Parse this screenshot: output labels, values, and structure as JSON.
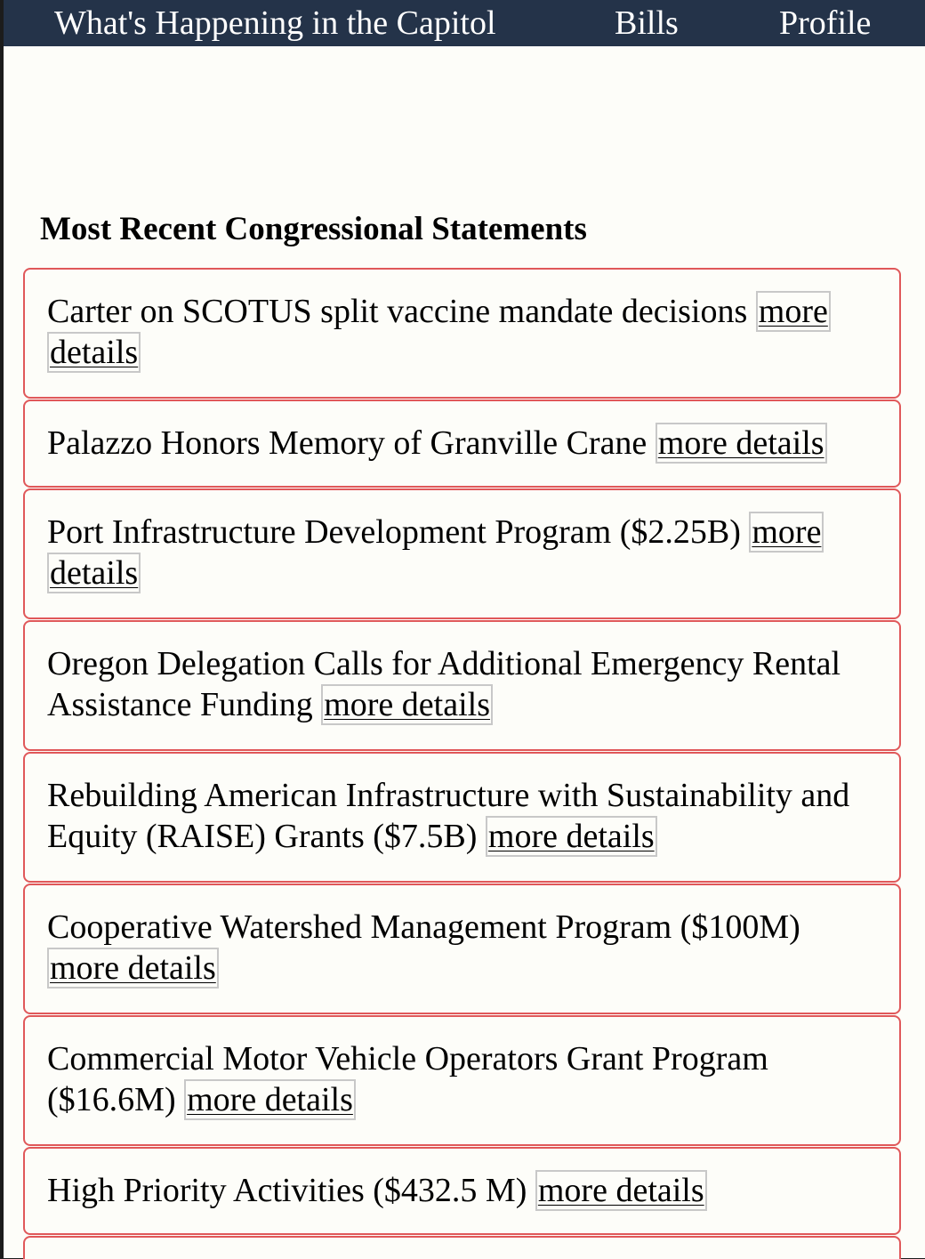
{
  "nav": {
    "items": [
      {
        "label": "What's Happening in the Capitol"
      },
      {
        "label": "Bills"
      },
      {
        "label": "Profile"
      }
    ]
  },
  "main": {
    "section_title": "Most Recent Congressional Statements",
    "link_label": "more details",
    "statements": [
      {
        "title": "Carter on SCOTUS split vaccine mandate decisions"
      },
      {
        "title": "Palazzo Honors Memory of Granville Crane"
      },
      {
        "title": "Port Infrastructure Development Program ($2.25B)"
      },
      {
        "title": "Oregon Delegation Calls for Additional Emergency Rental Assistance Funding"
      },
      {
        "title": "Rebuilding American Infrastructure with Sustainability and Equity (RAISE) Grants ($7.5B)"
      },
      {
        "title": "Cooperative Watershed Management Program ($100M)"
      },
      {
        "title": "Commercial Motor Vehicle Operators Grant Program ($16.6M)"
      },
      {
        "title": "High Priority Activities ($432.5 M)"
      },
      {
        "title": ""
      }
    ]
  },
  "colors": {
    "nav_background": "#243349",
    "page_background": "#fdfdf9",
    "card_border": "#e0585a",
    "link_border": "#c8c8c8"
  }
}
